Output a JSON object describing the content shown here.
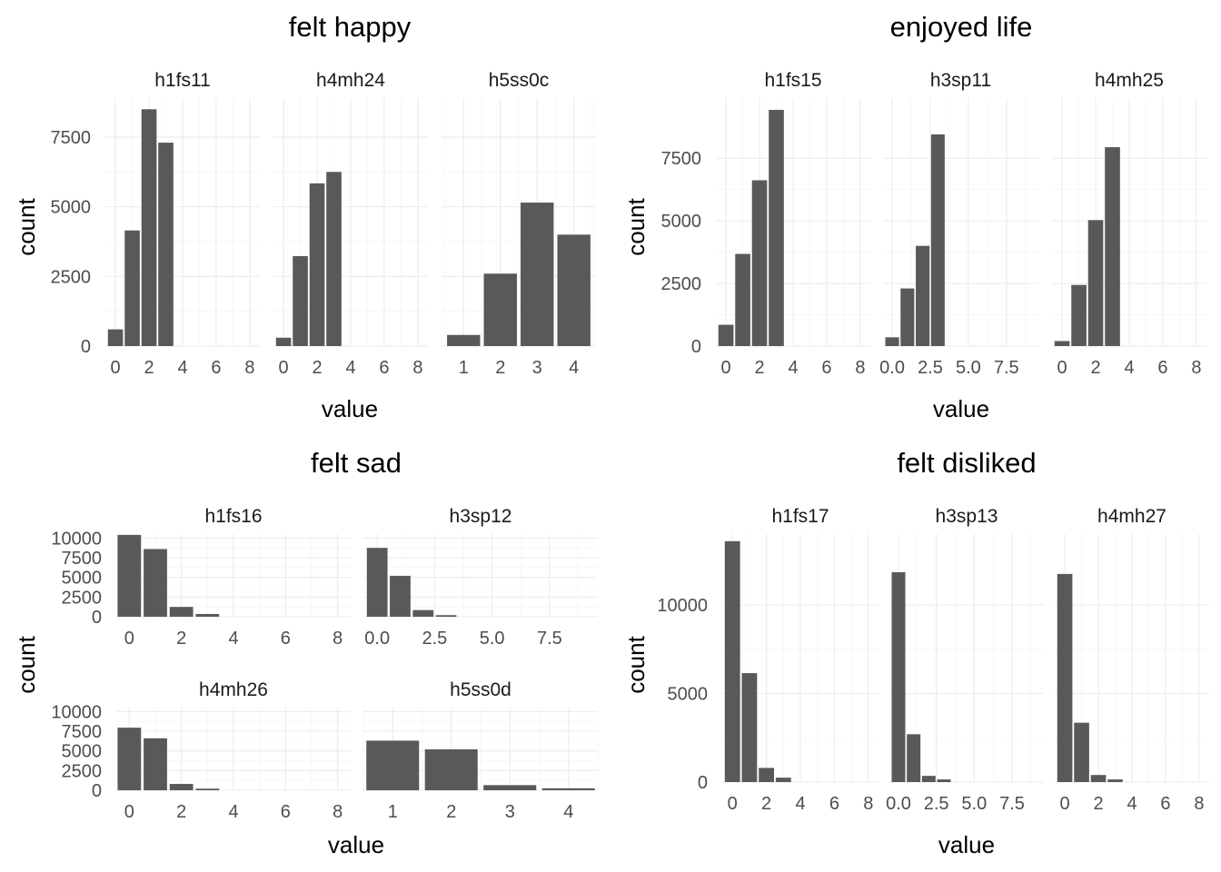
{
  "chart_data": [
    {
      "type": "bar",
      "title": "felt happy",
      "xlabel": "value",
      "ylabel": "count",
      "panels": [
        {
          "label": "h1fs11",
          "xlim": [
            -0.6,
            8.6
          ],
          "xticks": [
            0,
            2,
            4,
            6,
            8
          ],
          "xtick_labels": [
            "0",
            "2",
            "4",
            "6",
            "8"
          ],
          "ylim": [
            0,
            8900
          ],
          "yticks": [
            0,
            2500,
            5000,
            7500
          ],
          "ytick_labels": [
            "0",
            "2500",
            "5000",
            "7500"
          ],
          "bars": [
            {
              "x": 0,
              "count": 600
            },
            {
              "x": 1,
              "count": 4150
            },
            {
              "x": 2,
              "count": 8500
            },
            {
              "x": 3,
              "count": 7300
            }
          ]
        },
        {
          "label": "h4mh24",
          "xlim": [
            -0.6,
            8.6
          ],
          "xticks": [
            0,
            2,
            4,
            6,
            8
          ],
          "xtick_labels": [
            "0",
            "2",
            "4",
            "6",
            "8"
          ],
          "ylim": [
            0,
            8900
          ],
          "bars": [
            {
              "x": 0,
              "count": 300
            },
            {
              "x": 1,
              "count": 3230
            },
            {
              "x": 2,
              "count": 5840
            },
            {
              "x": 3,
              "count": 6250
            }
          ]
        },
        {
          "label": "h5ss0c",
          "xlim": [
            0.4,
            4.6
          ],
          "xticks": [
            1,
            2,
            3,
            4
          ],
          "xtick_labels": [
            "1",
            "2",
            "3",
            "4"
          ],
          "ylim": [
            0,
            8900
          ],
          "bars": [
            {
              "x": 1,
              "count": 400
            },
            {
              "x": 2,
              "count": 2600
            },
            {
              "x": 3,
              "count": 5150
            },
            {
              "x": 4,
              "count": 4000
            }
          ]
        }
      ]
    },
    {
      "type": "bar",
      "title": "enjoyed life",
      "xlabel": "value",
      "ylabel": "count",
      "panels": [
        {
          "label": "h1fs15",
          "xlim": [
            -0.6,
            8.6
          ],
          "xticks": [
            0,
            2,
            4,
            6,
            8
          ],
          "xtick_labels": [
            "0",
            "2",
            "4",
            "6",
            "8"
          ],
          "ylim": [
            0,
            9900
          ],
          "yticks": [
            0,
            2500,
            5000,
            7500
          ],
          "ytick_labels": [
            "0",
            "2500",
            "5000",
            "7500"
          ],
          "bars": [
            {
              "x": 0,
              "count": 850
            },
            {
              "x": 1,
              "count": 3680
            },
            {
              "x": 2,
              "count": 6620
            },
            {
              "x": 3,
              "count": 9430
            }
          ]
        },
        {
          "label": "h3sp11",
          "xlim": [
            -0.6,
            9.6
          ],
          "xticks": [
            0,
            2.5,
            5,
            7.5
          ],
          "xtick_labels": [
            "0.0",
            "2.5",
            "5.0",
            "7.5"
          ],
          "ylim": [
            0,
            9900
          ],
          "bars": [
            {
              "x": 0,
              "count": 350
            },
            {
              "x": 1,
              "count": 2300
            },
            {
              "x": 2,
              "count": 4000
            },
            {
              "x": 3,
              "count": 8450
            }
          ]
        },
        {
          "label": "h4mh25",
          "xlim": [
            -0.6,
            8.6
          ],
          "xticks": [
            0,
            2,
            4,
            6,
            8
          ],
          "xtick_labels": [
            "0",
            "2",
            "4",
            "6",
            "8"
          ],
          "ylim": [
            0,
            9900
          ],
          "bars": [
            {
              "x": 0,
              "count": 200
            },
            {
              "x": 1,
              "count": 2440
            },
            {
              "x": 2,
              "count": 5030
            },
            {
              "x": 3,
              "count": 7940
            }
          ]
        }
      ]
    },
    {
      "type": "bar",
      "title": "felt sad",
      "xlabel": "value",
      "ylabel": "count",
      "panels": [
        {
          "label": "h1fs16",
          "xlim": [
            -0.5,
            8.5
          ],
          "xticks": [
            0,
            2,
            4,
            6,
            8
          ],
          "xtick_labels": [
            "0",
            "2",
            "4",
            "6",
            "8"
          ],
          "ylim": [
            0,
            10500
          ],
          "yticks": [
            0,
            2500,
            5000,
            7500,
            10000
          ],
          "ytick_labels": [
            "0",
            "2500",
            "5000",
            "7500",
            "10000"
          ],
          "bars": [
            {
              "x": 0,
              "count": 10400
            },
            {
              "x": 1,
              "count": 8600
            },
            {
              "x": 2,
              "count": 1250
            },
            {
              "x": 3,
              "count": 350
            }
          ]
        },
        {
          "label": "h3sp12",
          "xlim": [
            -0.6,
            9.6
          ],
          "xticks": [
            0,
            2.5,
            5,
            7.5
          ],
          "xtick_labels": [
            "0.0",
            "2.5",
            "5.0",
            "7.5"
          ],
          "ylim": [
            0,
            10500
          ],
          "bars": [
            {
              "x": 0,
              "count": 8750
            },
            {
              "x": 1,
              "count": 5200
            },
            {
              "x": 2,
              "count": 850
            },
            {
              "x": 3,
              "count": 200
            }
          ]
        },
        {
          "label": "h4mh26",
          "xlim": [
            -0.5,
            8.5
          ],
          "xticks": [
            0,
            2,
            4,
            6,
            8
          ],
          "xtick_labels": [
            "0",
            "2",
            "4",
            "6",
            "8"
          ],
          "ylim": [
            0,
            10500
          ],
          "yticks": [
            0,
            2500,
            5000,
            7500,
            10000
          ],
          "ytick_labels": [
            "0",
            "2500",
            "5000",
            "7500",
            "10000"
          ],
          "bars": [
            {
              "x": 0,
              "count": 7950
            },
            {
              "x": 1,
              "count": 6600
            },
            {
              "x": 2,
              "count": 800
            },
            {
              "x": 3,
              "count": 200
            }
          ]
        },
        {
          "label": "h5ss0d",
          "xlim": [
            0.5,
            4.5
          ],
          "xticks": [
            1,
            2,
            3,
            4
          ],
          "xtick_labels": [
            "1",
            "2",
            "3",
            "4"
          ],
          "ylim": [
            0,
            10500
          ],
          "bars": [
            {
              "x": 1,
              "count": 6300
            },
            {
              "x": 2,
              "count": 5200
            },
            {
              "x": 3,
              "count": 650
            },
            {
              "x": 4,
              "count": 250
            }
          ]
        }
      ]
    },
    {
      "type": "bar",
      "title": "felt disliked",
      "xlabel": "value",
      "ylabel": "count",
      "panels": [
        {
          "label": "h1fs17",
          "xlim": [
            -0.6,
            8.6
          ],
          "xticks": [
            0,
            2,
            4,
            6,
            8
          ],
          "xtick_labels": [
            "0",
            "2",
            "4",
            "6",
            "8"
          ],
          "ylim": [
            0,
            14000
          ],
          "yticks": [
            0,
            5000,
            10000
          ],
          "ytick_labels": [
            "0",
            "5000",
            "10000"
          ],
          "bars": [
            {
              "x": 0,
              "count": 13600
            },
            {
              "x": 1,
              "count": 6150
            },
            {
              "x": 2,
              "count": 800
            },
            {
              "x": 3,
              "count": 250
            }
          ]
        },
        {
          "label": "h3sp13",
          "xlim": [
            -0.6,
            9.6
          ],
          "xticks": [
            0,
            2.5,
            5,
            7.5
          ],
          "xtick_labels": [
            "0.0",
            "2.5",
            "5.0",
            "7.5"
          ],
          "ylim": [
            0,
            14000
          ],
          "bars": [
            {
              "x": 0,
              "count": 11850
            },
            {
              "x": 1,
              "count": 2700
            },
            {
              "x": 2,
              "count": 350
            },
            {
              "x": 3,
              "count": 150
            }
          ]
        },
        {
          "label": "h4mh27",
          "xlim": [
            -0.6,
            8.6
          ],
          "xticks": [
            0,
            2,
            4,
            6,
            8
          ],
          "xtick_labels": [
            "0",
            "2",
            "4",
            "6",
            "8"
          ],
          "ylim": [
            0,
            14000
          ],
          "bars": [
            {
              "x": 0,
              "count": 11750
            },
            {
              "x": 1,
              "count": 3350
            },
            {
              "x": 2,
              "count": 400
            },
            {
              "x": 3,
              "count": 150
            }
          ]
        }
      ]
    }
  ]
}
